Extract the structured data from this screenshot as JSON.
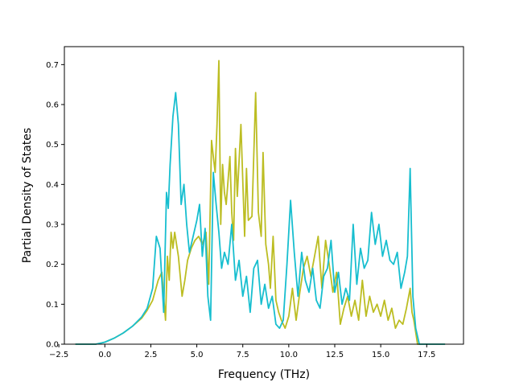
{
  "chart_data": {
    "type": "line",
    "title": "",
    "xlabel": "Frequency (THz)",
    "ylabel": "Partial Density of States",
    "xlim": [
      -2.2,
      19.5
    ],
    "ylim": [
      0.0,
      0.745
    ],
    "xticks": [
      {
        "value": -2.5,
        "label": "−2.5"
      },
      {
        "value": 0.0,
        "label": "0.0"
      },
      {
        "value": 2.5,
        "label": "2.5"
      },
      {
        "value": 5.0,
        "label": "5.0"
      },
      {
        "value": 7.5,
        "label": "7.5"
      },
      {
        "value": 10.0,
        "label": "10.0"
      },
      {
        "value": 12.5,
        "label": "12.5"
      },
      {
        "value": 15.0,
        "label": "15.0"
      },
      {
        "value": 17.5,
        "label": "17.5"
      }
    ],
    "yticks": [
      {
        "value": 0.0,
        "label": "0.0"
      },
      {
        "value": 0.1,
        "label": "0.1"
      },
      {
        "value": 0.2,
        "label": "0.2"
      },
      {
        "value": 0.3,
        "label": "0.3"
      },
      {
        "value": 0.4,
        "label": "0.4"
      },
      {
        "value": 0.5,
        "label": "0.5"
      },
      {
        "value": 0.6,
        "label": "0.6"
      },
      {
        "value": 0.7,
        "label": "0.7"
      }
    ],
    "grid": false,
    "legend": "none",
    "series": [
      {
        "color": "#bcbd22",
        "x": [
          -1.6,
          -0.5,
          0.0,
          0.5,
          1.0,
          1.5,
          2.0,
          2.3,
          2.6,
          2.9,
          3.1,
          3.3,
          3.4,
          3.5,
          3.6,
          3.7,
          3.8,
          4.0,
          4.2,
          4.35,
          4.5,
          4.7,
          4.9,
          5.1,
          5.3,
          5.5,
          5.65,
          5.8,
          5.9,
          6.0,
          6.1,
          6.2,
          6.3,
          6.4,
          6.5,
          6.6,
          6.8,
          6.9,
          7.0,
          7.1,
          7.2,
          7.4,
          7.6,
          7.7,
          7.8,
          8.0,
          8.2,
          8.35,
          8.5,
          8.6,
          8.75,
          8.9,
          9.0,
          9.15,
          9.3,
          9.45,
          9.6,
          9.8,
          10.0,
          10.2,
          10.4,
          10.6,
          10.8,
          11.0,
          11.2,
          11.4,
          11.6,
          11.8,
          12.0,
          12.2,
          12.4,
          12.6,
          12.8,
          13.0,
          13.2,
          13.4,
          13.6,
          13.8,
          14.0,
          14.2,
          14.4,
          14.6,
          14.8,
          15.0,
          15.2,
          15.4,
          15.6,
          15.8,
          16.0,
          16.2,
          16.4,
          16.6,
          16.7,
          16.8,
          16.9,
          17.0,
          17.3,
          18.5
        ],
        "y": [
          0.0,
          0.0,
          0.005,
          0.015,
          0.028,
          0.045,
          0.065,
          0.085,
          0.11,
          0.16,
          0.18,
          0.06,
          0.22,
          0.16,
          0.28,
          0.24,
          0.28,
          0.22,
          0.12,
          0.16,
          0.21,
          0.24,
          0.26,
          0.27,
          0.25,
          0.28,
          0.15,
          0.51,
          0.47,
          0.43,
          0.55,
          0.71,
          0.3,
          0.45,
          0.38,
          0.35,
          0.47,
          0.33,
          0.26,
          0.49,
          0.37,
          0.55,
          0.27,
          0.44,
          0.31,
          0.32,
          0.63,
          0.33,
          0.27,
          0.48,
          0.25,
          0.2,
          0.14,
          0.27,
          0.11,
          0.08,
          0.06,
          0.04,
          0.07,
          0.14,
          0.06,
          0.13,
          0.19,
          0.22,
          0.17,
          0.22,
          0.27,
          0.14,
          0.26,
          0.2,
          0.13,
          0.18,
          0.05,
          0.09,
          0.12,
          0.07,
          0.11,
          0.06,
          0.16,
          0.07,
          0.12,
          0.08,
          0.1,
          0.07,
          0.11,
          0.06,
          0.09,
          0.04,
          0.06,
          0.05,
          0.09,
          0.14,
          0.08,
          0.06,
          0.03,
          0.0,
          0.0,
          0.0
        ]
      },
      {
        "color": "#17becf",
        "x": [
          -1.6,
          -0.5,
          0.0,
          0.5,
          1.0,
          1.5,
          2.0,
          2.3,
          2.6,
          2.8,
          3.0,
          3.2,
          3.35,
          3.45,
          3.55,
          3.7,
          3.85,
          4.0,
          4.15,
          4.3,
          4.45,
          4.6,
          4.8,
          5.0,
          5.15,
          5.3,
          5.45,
          5.6,
          5.75,
          5.9,
          6.05,
          6.2,
          6.35,
          6.5,
          6.7,
          6.9,
          7.1,
          7.3,
          7.5,
          7.7,
          7.9,
          8.1,
          8.3,
          8.5,
          8.7,
          8.9,
          9.1,
          9.3,
          9.5,
          9.7,
          9.9,
          10.1,
          10.3,
          10.5,
          10.7,
          10.9,
          11.1,
          11.3,
          11.5,
          11.7,
          11.9,
          12.1,
          12.3,
          12.5,
          12.7,
          12.9,
          13.1,
          13.3,
          13.5,
          13.7,
          13.9,
          14.1,
          14.3,
          14.5,
          14.7,
          14.9,
          15.1,
          15.3,
          15.5,
          15.7,
          15.9,
          16.1,
          16.3,
          16.45,
          16.6,
          16.75,
          16.9,
          17.1,
          17.4,
          18.5
        ],
        "y": [
          0.0,
          0.0,
          0.005,
          0.015,
          0.028,
          0.045,
          0.068,
          0.09,
          0.14,
          0.27,
          0.24,
          0.08,
          0.38,
          0.34,
          0.45,
          0.57,
          0.63,
          0.55,
          0.35,
          0.4,
          0.3,
          0.23,
          0.27,
          0.31,
          0.35,
          0.22,
          0.29,
          0.12,
          0.06,
          0.43,
          0.35,
          0.28,
          0.19,
          0.23,
          0.2,
          0.3,
          0.16,
          0.21,
          0.12,
          0.17,
          0.08,
          0.19,
          0.21,
          0.1,
          0.15,
          0.09,
          0.12,
          0.05,
          0.04,
          0.06,
          0.2,
          0.36,
          0.23,
          0.12,
          0.23,
          0.16,
          0.13,
          0.19,
          0.11,
          0.09,
          0.17,
          0.19,
          0.26,
          0.13,
          0.18,
          0.1,
          0.14,
          0.11,
          0.3,
          0.15,
          0.24,
          0.19,
          0.21,
          0.33,
          0.25,
          0.3,
          0.22,
          0.26,
          0.21,
          0.2,
          0.23,
          0.14,
          0.18,
          0.22,
          0.44,
          0.12,
          0.04,
          0.0,
          0.0,
          0.0
        ]
      }
    ]
  }
}
